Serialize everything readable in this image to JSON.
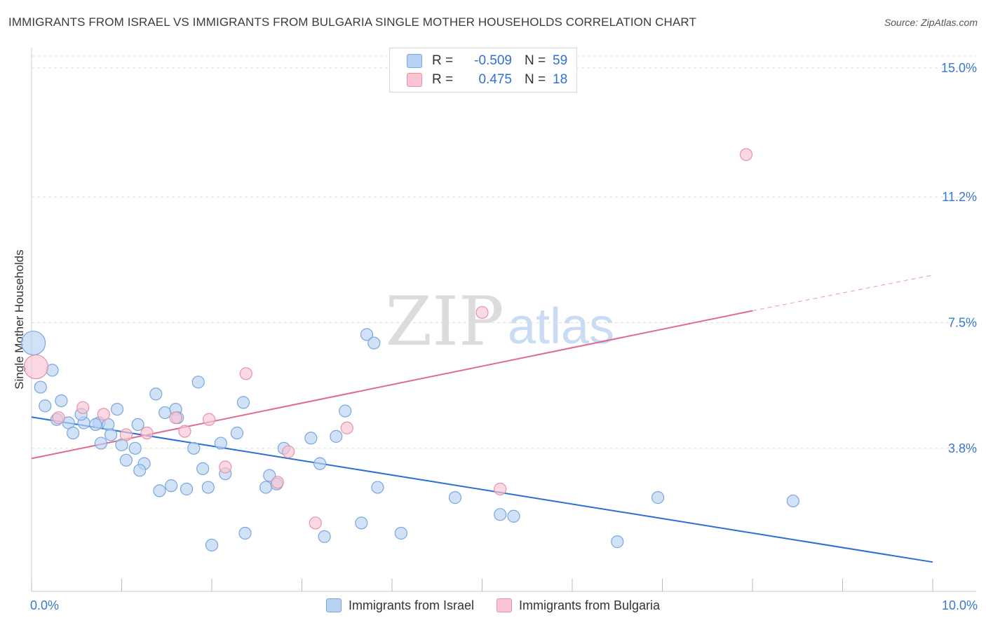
{
  "title": "IMMIGRANTS FROM ISRAEL VS IMMIGRANTS FROM BULGARIA SINGLE MOTHER HOUSEHOLDS CORRELATION CHART",
  "source": "Source: ZipAtlas.com",
  "watermark": {
    "zip": "ZIP",
    "atlas": "atlas"
  },
  "legend_top": [
    {
      "r_label": "R =",
      "r_value": "-0.509",
      "n_label": "N =",
      "n_value": "59"
    },
    {
      "r_label": "R =",
      "r_value": "0.475",
      "n_label": "N =",
      "n_value": "18"
    }
  ],
  "legend_bottom": [
    "Immigrants from Israel",
    "Immigrants from Bulgaria"
  ],
  "colors": {
    "israel_fill": "#b9d2f3",
    "israel_stroke": "#7aa6e0",
    "israel_line": "#2b6fd3",
    "bulgaria_fill": "#f8c4d4",
    "bulgaria_stroke": "#e891aa",
    "bulgaria_line": "#e06a93",
    "tick_label": "#3a78d0",
    "grid": "#dddddd"
  },
  "chart_data": {
    "type": "scatter",
    "title": "IMMIGRANTS FROM ISRAEL VS IMMIGRANTS FROM BULGARIA SINGLE MOTHER HOUSEHOLDS CORRELATION CHART",
    "xlabel": "",
    "ylabel": "Single Mother Households",
    "xlim": [
      0,
      10
    ],
    "ylim": [
      0,
      15.5
    ],
    "x_tick_labels": [
      {
        "value": 0,
        "label": "0.0%"
      },
      {
        "value": 10,
        "label": "10.0%"
      }
    ],
    "y_tick_labels": [
      {
        "value": 3.8,
        "label": "3.8%"
      },
      {
        "value": 7.5,
        "label": "7.5%"
      },
      {
        "value": 11.2,
        "label": "11.2%"
      },
      {
        "value": 15.0,
        "label": "15.0%"
      }
    ],
    "grid": true,
    "series": [
      {
        "name": "Immigrants from Israel",
        "r": -0.509,
        "n": 59,
        "trend": {
          "x0": 0,
          "y0": 4.72,
          "x1": 10,
          "y1": 0.45
        },
        "points": [
          {
            "x": 0.02,
            "y": 6.9,
            "size": "large"
          },
          {
            "x": 0.1,
            "y": 5.6
          },
          {
            "x": 0.23,
            "y": 6.1
          },
          {
            "x": 0.15,
            "y": 5.05
          },
          {
            "x": 0.33,
            "y": 5.2
          },
          {
            "x": 0.28,
            "y": 4.65
          },
          {
            "x": 0.41,
            "y": 4.55
          },
          {
            "x": 0.58,
            "y": 4.55
          },
          {
            "x": 0.46,
            "y": 4.25
          },
          {
            "x": 0.55,
            "y": 4.8
          },
          {
            "x": 0.75,
            "y": 4.55
          },
          {
            "x": 0.71,
            "y": 4.5
          },
          {
            "x": 0.85,
            "y": 4.5
          },
          {
            "x": 0.95,
            "y": 4.95
          },
          {
            "x": 0.77,
            "y": 3.95
          },
          {
            "x": 0.88,
            "y": 4.2
          },
          {
            "x": 1.0,
            "y": 3.9
          },
          {
            "x": 1.15,
            "y": 3.8
          },
          {
            "x": 1.05,
            "y": 3.45
          },
          {
            "x": 1.18,
            "y": 4.5
          },
          {
            "x": 1.25,
            "y": 3.35
          },
          {
            "x": 1.2,
            "y": 3.15
          },
          {
            "x": 1.38,
            "y": 5.4
          },
          {
            "x": 1.48,
            "y": 4.85
          },
          {
            "x": 1.6,
            "y": 4.95
          },
          {
            "x": 1.62,
            "y": 4.7
          },
          {
            "x": 1.42,
            "y": 2.55
          },
          {
            "x": 1.55,
            "y": 2.7
          },
          {
            "x": 1.72,
            "y": 2.6
          },
          {
            "x": 1.8,
            "y": 3.8
          },
          {
            "x": 1.85,
            "y": 5.75
          },
          {
            "x": 1.9,
            "y": 3.2
          },
          {
            "x": 1.96,
            "y": 2.65
          },
          {
            "x": 2.0,
            "y": 0.95
          },
          {
            "x": 2.1,
            "y": 3.95
          },
          {
            "x": 2.15,
            "y": 3.05
          },
          {
            "x": 2.28,
            "y": 4.25
          },
          {
            "x": 2.35,
            "y": 5.15
          },
          {
            "x": 2.37,
            "y": 1.3
          },
          {
            "x": 2.6,
            "y": 2.65
          },
          {
            "x": 2.64,
            "y": 3.0
          },
          {
            "x": 2.72,
            "y": 2.75
          },
          {
            "x": 2.8,
            "y": 3.8
          },
          {
            "x": 3.1,
            "y": 4.1
          },
          {
            "x": 3.2,
            "y": 3.35
          },
          {
            "x": 3.25,
            "y": 1.2
          },
          {
            "x": 3.38,
            "y": 4.15
          },
          {
            "x": 3.48,
            "y": 4.9
          },
          {
            "x": 3.66,
            "y": 1.6
          },
          {
            "x": 3.72,
            "y": 7.15
          },
          {
            "x": 3.8,
            "y": 6.9
          },
          {
            "x": 3.84,
            "y": 2.65
          },
          {
            "x": 4.1,
            "y": 1.3
          },
          {
            "x": 4.7,
            "y": 2.35
          },
          {
            "x": 5.2,
            "y": 1.85
          },
          {
            "x": 5.35,
            "y": 1.8
          },
          {
            "x": 6.5,
            "y": 1.05
          },
          {
            "x": 6.95,
            "y": 2.35
          },
          {
            "x": 8.45,
            "y": 2.25
          }
        ]
      },
      {
        "name": "Immigrants from Bulgaria",
        "r": 0.475,
        "n": 18,
        "trend": {
          "x0": 0,
          "y0": 3.5,
          "x1": 8.0,
          "y1": 7.85,
          "dashed_to_x": 10,
          "dashed_to_y": 8.9
        },
        "points": [
          {
            "x": 0.05,
            "y": 6.2,
            "size": "large"
          },
          {
            "x": 0.3,
            "y": 4.7
          },
          {
            "x": 0.57,
            "y": 5.0
          },
          {
            "x": 0.8,
            "y": 4.8
          },
          {
            "x": 1.05,
            "y": 4.2
          },
          {
            "x": 1.28,
            "y": 4.25
          },
          {
            "x": 1.6,
            "y": 4.7
          },
          {
            "x": 1.7,
            "y": 4.3
          },
          {
            "x": 1.97,
            "y": 4.65
          },
          {
            "x": 2.15,
            "y": 3.25
          },
          {
            "x": 2.38,
            "y": 6.0
          },
          {
            "x": 2.73,
            "y": 2.8
          },
          {
            "x": 2.85,
            "y": 3.7
          },
          {
            "x": 3.15,
            "y": 1.6
          },
          {
            "x": 3.5,
            "y": 4.4
          },
          {
            "x": 5.0,
            "y": 7.8
          },
          {
            "x": 5.2,
            "y": 2.6
          },
          {
            "x": 7.93,
            "y": 12.45
          }
        ]
      }
    ]
  }
}
